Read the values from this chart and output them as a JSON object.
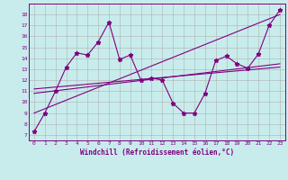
{
  "xlabel": "Windchill (Refroidissement éolien,°C)",
  "ylabel": "",
  "xlim": [
    -0.5,
    23.5
  ],
  "ylim": [
    6.5,
    19.0
  ],
  "xticks": [
    0,
    1,
    2,
    3,
    4,
    5,
    6,
    7,
    8,
    9,
    10,
    11,
    12,
    13,
    14,
    15,
    16,
    17,
    18,
    19,
    20,
    21,
    22,
    23
  ],
  "yticks": [
    7,
    8,
    9,
    10,
    11,
    12,
    13,
    14,
    15,
    16,
    17,
    18
  ],
  "background_color": "#c8ecec",
  "grid_color": "#b0b0b0",
  "line_color": "#800080",
  "series1_x": [
    0,
    1,
    2,
    3,
    4,
    5,
    6,
    7,
    8,
    9,
    10,
    11,
    12,
    13,
    14,
    15,
    16,
    17,
    18,
    19,
    20,
    21,
    22,
    23
  ],
  "series1_y": [
    7.3,
    9.0,
    11.0,
    13.2,
    14.5,
    14.3,
    15.5,
    17.3,
    13.9,
    14.3,
    12.0,
    12.2,
    12.0,
    9.9,
    9.0,
    9.0,
    10.8,
    13.8,
    14.2,
    13.5,
    13.1,
    14.4,
    17.0,
    18.4
  ],
  "series2_x": [
    0,
    23
  ],
  "series2_y": [
    9.0,
    18.0
  ],
  "series3_x": [
    0,
    23
  ],
  "series3_y": [
    10.8,
    13.5
  ],
  "series4_x": [
    0,
    23
  ],
  "series4_y": [
    11.2,
    13.2
  ]
}
